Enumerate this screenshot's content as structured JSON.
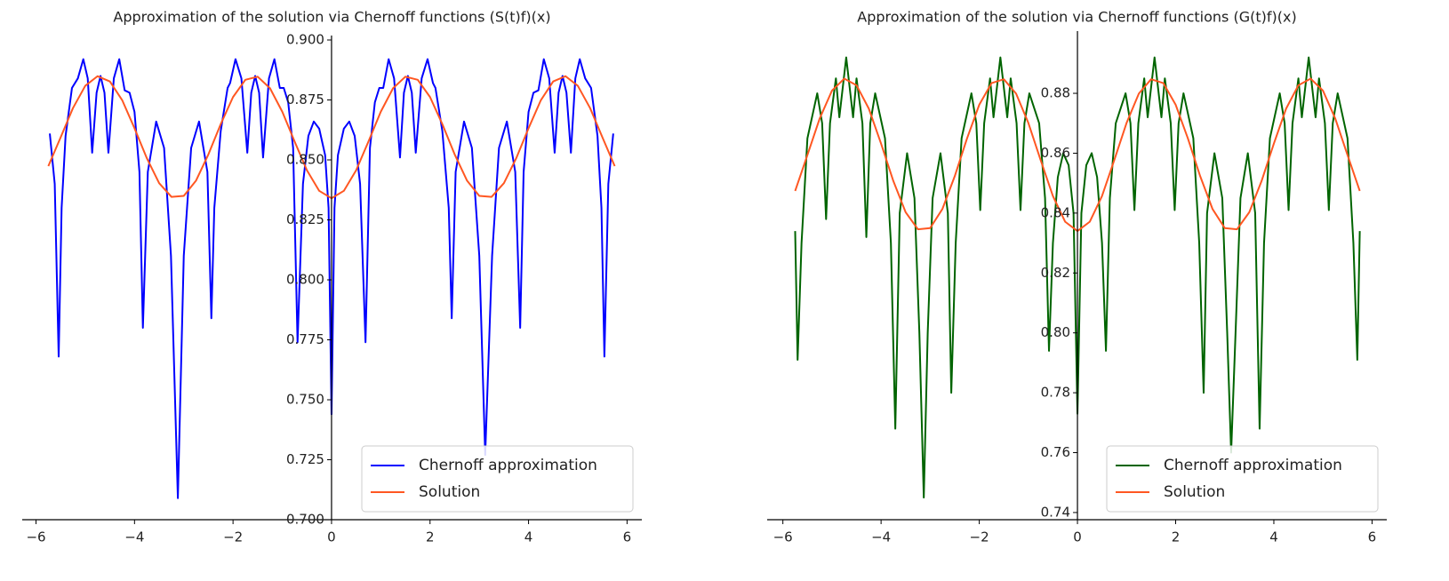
{
  "chart_data": [
    {
      "type": "line",
      "title": "Approximation of the solution via Chernoff functions (S(t)f)(x)",
      "xlim": [
        -6.28,
        6.3
      ],
      "ylim": [
        0.7,
        0.9
      ],
      "xticks": [
        {
          "value": -6,
          "label": "−6"
        },
        {
          "value": -4,
          "label": "−4"
        },
        {
          "value": -2,
          "label": "−2"
        },
        0,
        2,
        4,
        6
      ],
      "yticks": [
        {
          "value": 0.7,
          "label": "0.700"
        },
        0.725,
        {
          "value": 0.75,
          "label": "0.750"
        },
        0.775,
        {
          "value": 0.8,
          "label": "0.800"
        },
        0.825,
        {
          "value": 0.85,
          "label": "0.850"
        },
        0.875,
        {
          "value": 0.9,
          "label": "0.900"
        }
      ],
      "legend": "lower right",
      "series": [
        {
          "name": "Chernoff approximation",
          "color": "#0000ff",
          "x": [
            -5.72,
            -5.62,
            -5.54,
            -5.48,
            -5.4,
            -5.27,
            -5.15,
            -5.04,
            -4.95,
            -4.86,
            -4.77,
            -4.69,
            -4.61,
            -4.53,
            -4.42,
            -4.31,
            -4.2,
            -4.1,
            -4.0,
            -3.9,
            -3.83,
            -3.73,
            -3.56,
            -3.4,
            -3.26,
            -3.12,
            -3.0,
            -2.85,
            -2.69,
            -2.52,
            -2.44,
            -2.38,
            -2.25,
            -2.11,
            -2.06,
            -1.95,
            -1.83,
            -1.71,
            -1.63,
            -1.55,
            -1.47,
            -1.39,
            -1.27,
            -1.16,
            -1.05,
            -0.97,
            -0.88,
            -0.78,
            -0.69,
            -0.58,
            -0.47,
            -0.36,
            -0.25,
            -0.13,
            -0.06,
            0,
            0.06,
            0.13,
            0.25,
            0.36,
            0.47,
            0.58,
            0.69,
            0.78,
            0.88,
            0.97,
            1.05,
            1.16,
            1.27,
            1.39,
            1.47,
            1.55,
            1.63,
            1.71,
            1.83,
            1.95,
            2.06,
            2.11,
            2.25,
            2.38,
            2.44,
            2.52,
            2.69,
            2.85,
            3.0,
            3.12,
            3.26,
            3.4,
            3.56,
            3.73,
            3.83,
            3.9,
            4.0,
            4.1,
            4.2,
            4.31,
            4.42,
            4.53,
            4.61,
            4.69,
            4.77,
            4.86,
            4.95,
            5.04,
            5.15,
            5.27,
            5.4,
            5.48,
            5.54,
            5.62,
            5.72
          ],
          "values": [
            0.861,
            0.84,
            0.768,
            0.83,
            0.86,
            0.88,
            0.884,
            0.892,
            0.884,
            0.853,
            0.878,
            0.885,
            0.878,
            0.853,
            0.884,
            0.892,
            0.879,
            0.878,
            0.87,
            0.845,
            0.78,
            0.845,
            0.866,
            0.855,
            0.81,
            0.709,
            0.81,
            0.855,
            0.866,
            0.845,
            0.784,
            0.83,
            0.862,
            0.88,
            0.882,
            0.892,
            0.884,
            0.853,
            0.878,
            0.885,
            0.878,
            0.851,
            0.884,
            0.892,
            0.88,
            0.88,
            0.874,
            0.855,
            0.774,
            0.84,
            0.86,
            0.866,
            0.863,
            0.852,
            0.83,
            0.744,
            0.83,
            0.852,
            0.863,
            0.866,
            0.86,
            0.84,
            0.774,
            0.855,
            0.874,
            0.88,
            0.88,
            0.892,
            0.884,
            0.851,
            0.878,
            0.885,
            0.878,
            0.853,
            0.884,
            0.892,
            0.882,
            0.88,
            0.862,
            0.83,
            0.784,
            0.845,
            0.866,
            0.855,
            0.81,
            0.727,
            0.81,
            0.855,
            0.866,
            0.845,
            0.78,
            0.845,
            0.87,
            0.878,
            0.879,
            0.892,
            0.884,
            0.853,
            0.878,
            0.885,
            0.878,
            0.853,
            0.884,
            0.892,
            0.884,
            0.88,
            0.86,
            0.83,
            0.768,
            0.84,
            0.861
          ]
        },
        {
          "name": "Solution",
          "color": "#ff5722",
          "x": [
            -5.75,
            -5.5,
            -5.25,
            -5.0,
            -4.75,
            -4.5,
            -4.25,
            -4.0,
            -3.75,
            -3.5,
            -3.25,
            -3.0,
            -2.75,
            -2.5,
            -2.25,
            -2.0,
            -1.75,
            -1.5,
            -1.25,
            -1.0,
            -0.75,
            -0.5,
            -0.25,
            0,
            0.25,
            0.5,
            0.75,
            1.0,
            1.25,
            1.5,
            1.75,
            2.0,
            2.25,
            2.5,
            2.75,
            3.0,
            3.25,
            3.5,
            3.75,
            4.0,
            4.25,
            4.5,
            4.75,
            5.0,
            5.25,
            5.5,
            5.75
          ],
          "values": [
            0.8474,
            0.8594,
            0.8716,
            0.8809,
            0.8849,
            0.8827,
            0.8749,
            0.8632,
            0.8507,
            0.8403,
            0.8346,
            0.835,
            0.8414,
            0.8523,
            0.8649,
            0.8762,
            0.8834,
            0.8847,
            0.8799,
            0.8701,
            0.8577,
            0.8457,
            0.8371,
            0.834,
            0.8371,
            0.8457,
            0.8577,
            0.8701,
            0.8799,
            0.8847,
            0.8834,
            0.8762,
            0.8649,
            0.8523,
            0.8414,
            0.835,
            0.8346,
            0.8403,
            0.8507,
            0.8632,
            0.8749,
            0.8827,
            0.8849,
            0.8809,
            0.8716,
            0.8594,
            0.8474
          ]
        }
      ]
    },
    {
      "type": "line",
      "title": "Approximation of the solution via Chernoff functions (G(t)f)(x)",
      "xlim": [
        -6.32,
        6.3
      ],
      "ylim": [
        0.7376,
        0.8993
      ],
      "xticks": [
        {
          "value": -6,
          "label": "−6"
        },
        {
          "value": -4,
          "label": "−4"
        },
        {
          "value": -2,
          "label": "−2"
        },
        0,
        2,
        4,
        6
      ],
      "yticks": [
        0.74,
        0.76,
        0.78,
        {
          "value": 0.8,
          "label": "0.80"
        },
        0.82,
        0.84,
        0.86,
        0.88
      ],
      "legend": "lower right",
      "series": [
        {
          "name": "Chernoff approximation",
          "color": "#006400",
          "x": [
            -5.75,
            -5.7,
            -5.62,
            -5.5,
            -5.3,
            -5.2,
            -5.12,
            -5.04,
            -4.92,
            -4.85,
            -4.71,
            -4.57,
            -4.5,
            -4.38,
            -4.3,
            -4.22,
            -4.12,
            -3.92,
            -3.8,
            -3.71,
            -3.62,
            -3.47,
            -3.32,
            -3.22,
            -3.13,
            -3.05,
            -2.95,
            -2.79,
            -2.64,
            -2.57,
            -2.48,
            -2.36,
            -2.16,
            -2.06,
            -1.98,
            -1.9,
            -1.78,
            -1.71,
            -1.57,
            -1.43,
            -1.36,
            -1.24,
            -1.16,
            -1.08,
            -0.98,
            -0.78,
            -0.66,
            -0.58,
            -0.5,
            -0.4,
            -0.29,
            -0.18,
            -0.08,
            0,
            0.08,
            0.18,
            0.29,
            0.4,
            0.5,
            0.58,
            0.66,
            0.78,
            0.98,
            1.08,
            1.16,
            1.24,
            1.36,
            1.43,
            1.57,
            1.71,
            1.78,
            1.9,
            1.98,
            2.06,
            2.16,
            2.36,
            2.48,
            2.57,
            2.64,
            2.79,
            2.95,
            3.05,
            3.13,
            3.22,
            3.32,
            3.47,
            3.62,
            3.71,
            3.8,
            3.92,
            4.12,
            4.22,
            4.3,
            4.38,
            4.5,
            4.57,
            4.71,
            4.85,
            4.92,
            5.04,
            5.12,
            5.2,
            5.3,
            5.5,
            5.62,
            5.7,
            5.75
          ],
          "values": [
            0.834,
            0.791,
            0.83,
            0.865,
            0.88,
            0.87,
            0.838,
            0.87,
            0.885,
            0.872,
            0.892,
            0.872,
            0.885,
            0.87,
            0.832,
            0.87,
            0.88,
            0.865,
            0.83,
            0.768,
            0.84,
            0.86,
            0.845,
            0.8,
            0.745,
            0.8,
            0.845,
            0.86,
            0.84,
            0.78,
            0.83,
            0.865,
            0.88,
            0.87,
            0.841,
            0.87,
            0.885,
            0.872,
            0.892,
            0.872,
            0.885,
            0.87,
            0.841,
            0.87,
            0.88,
            0.87,
            0.845,
            0.794,
            0.83,
            0.852,
            0.86,
            0.856,
            0.84,
            0.773,
            0.84,
            0.856,
            0.86,
            0.852,
            0.83,
            0.794,
            0.845,
            0.87,
            0.88,
            0.87,
            0.841,
            0.87,
            0.885,
            0.872,
            0.892,
            0.872,
            0.885,
            0.87,
            0.841,
            0.87,
            0.88,
            0.865,
            0.83,
            0.78,
            0.84,
            0.86,
            0.845,
            0.8,
            0.76,
            0.8,
            0.845,
            0.86,
            0.84,
            0.768,
            0.83,
            0.865,
            0.88,
            0.87,
            0.841,
            0.87,
            0.885,
            0.872,
            0.892,
            0.872,
            0.885,
            0.87,
            0.841,
            0.87,
            0.88,
            0.865,
            0.83,
            0.791,
            0.834
          ]
        },
        {
          "name": "Solution",
          "color": "#ff5722",
          "x": [
            -5.75,
            -5.5,
            -5.25,
            -5.0,
            -4.75,
            -4.5,
            -4.25,
            -4.0,
            -3.75,
            -3.5,
            -3.25,
            -3.0,
            -2.75,
            -2.5,
            -2.25,
            -2.0,
            -1.75,
            -1.5,
            -1.25,
            -1.0,
            -0.75,
            -0.5,
            -0.25,
            0,
            0.25,
            0.5,
            0.75,
            1.0,
            1.25,
            1.5,
            1.75,
            2.0,
            2.25,
            2.5,
            2.75,
            3.0,
            3.25,
            3.5,
            3.75,
            4.0,
            4.25,
            4.5,
            4.75,
            5.0,
            5.25,
            5.5,
            5.75
          ],
          "values": [
            0.8474,
            0.8594,
            0.8716,
            0.8809,
            0.8849,
            0.8827,
            0.8749,
            0.8632,
            0.8507,
            0.8403,
            0.8346,
            0.835,
            0.8414,
            0.8523,
            0.8649,
            0.8762,
            0.8834,
            0.8847,
            0.8799,
            0.8701,
            0.8577,
            0.8457,
            0.8371,
            0.834,
            0.8371,
            0.8457,
            0.8577,
            0.8701,
            0.8799,
            0.8847,
            0.8834,
            0.8762,
            0.8649,
            0.8523,
            0.8414,
            0.835,
            0.8346,
            0.8403,
            0.8507,
            0.8632,
            0.8749,
            0.8827,
            0.8849,
            0.8809,
            0.8716,
            0.8594,
            0.8474
          ]
        }
      ]
    }
  ]
}
